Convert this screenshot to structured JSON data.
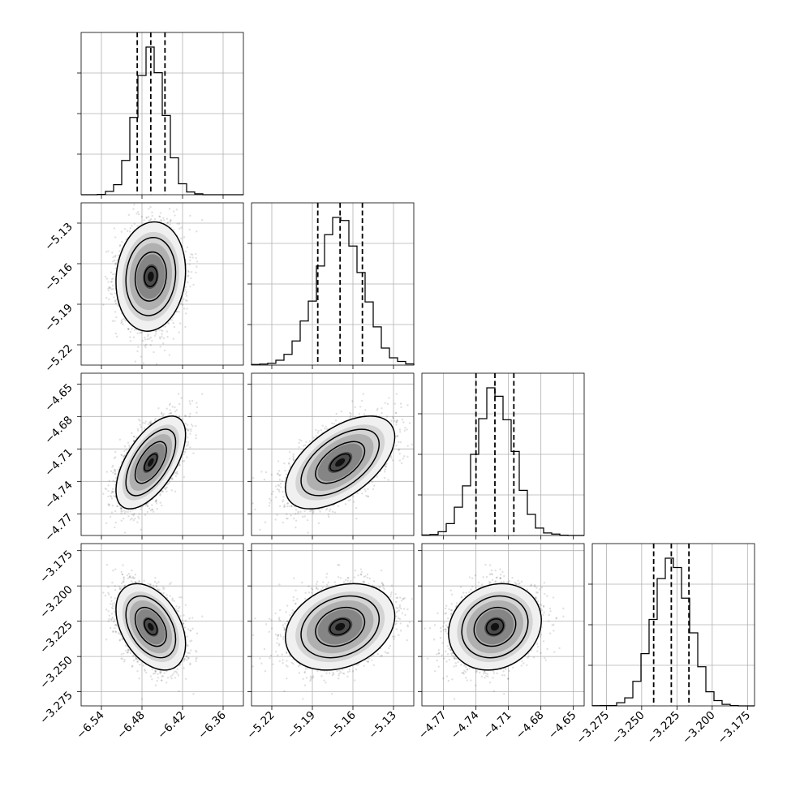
{
  "chart_data": {
    "type": "corner",
    "title": "",
    "grid": true,
    "parameters": [
      {
        "mean": -6.467,
        "sd": 0.021,
        "range": [
          -6.57,
          -6.33
        ],
        "ticks": [
          -6.54,
          -6.48,
          -6.42,
          -6.36
        ],
        "tick_labels": [
          "−6.54",
          "−6.48",
          "−6.42",
          "−6.36"
        ],
        "quantiles": [
          -6.487,
          -6.467,
          -6.446
        ]
      },
      {
        "mean": -5.1695,
        "sd": 0.0165,
        "range": [
          -5.235,
          -5.115
        ],
        "ticks": [
          -5.22,
          -5.19,
          -5.16,
          -5.13
        ],
        "tick_labels": [
          "−5.22",
          "−5.19",
          "−5.16",
          "−5.13"
        ],
        "quantiles": [
          -5.186,
          -5.1695,
          -5.153
        ]
      },
      {
        "mean": -4.7225,
        "sd": 0.0175,
        "range": [
          -4.79,
          -4.64
        ],
        "ticks": [
          -4.77,
          -4.74,
          -4.71,
          -4.68,
          -4.65
        ],
        "tick_labels": [
          "−4.77",
          "−4.74",
          "−4.71",
          "−4.68",
          "−4.65"
        ],
        "quantiles": [
          -4.74,
          -4.7225,
          -4.705
        ]
      },
      {
        "mean": -3.229,
        "sd": 0.0125,
        "range": [
          -3.285,
          -3.17
        ],
        "ticks": [
          -3.275,
          -3.25,
          -3.225,
          -3.2,
          -3.175
        ],
        "tick_labels": [
          "−3.275",
          "−3.250",
          "−3.225",
          "−3.200",
          "−3.175"
        ],
        "quantiles": [
          -3.2415,
          -3.229,
          -3.2165
        ]
      }
    ],
    "correlations": [
      [
        1,
        0.1,
        0.6,
        -0.4
      ],
      [
        0.1,
        1,
        0.55,
        0.25
      ],
      [
        0.6,
        0.55,
        1,
        0.15
      ],
      [
        -0.4,
        0.25,
        0.15,
        1
      ]
    ],
    "bins": 20,
    "samples_shown": 5000
  }
}
